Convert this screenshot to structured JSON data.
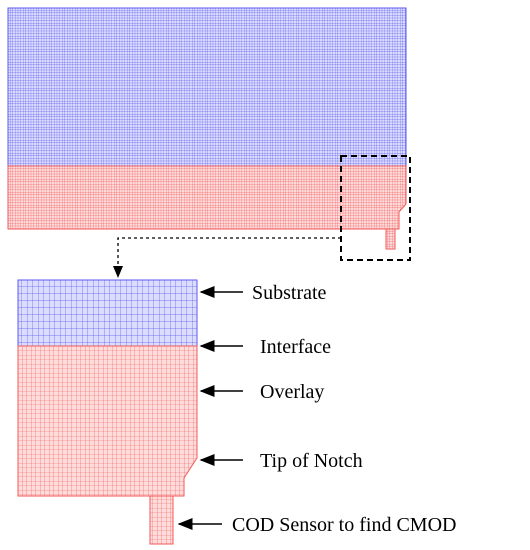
{
  "labels": {
    "substrate": "Substrate",
    "interface": "Interface",
    "overlay": "Overlay",
    "tip_of_notch": "Tip of Notch",
    "cod_sensor": "COD Sensor to find CMOD"
  },
  "colors": {
    "substrate_mesh": "#5a5af0",
    "substrate_fill": "#dcdcff",
    "overlay_mesh": "#f05a5a",
    "overlay_fill": "#ffdcdc",
    "annotation": "#000000"
  }
}
